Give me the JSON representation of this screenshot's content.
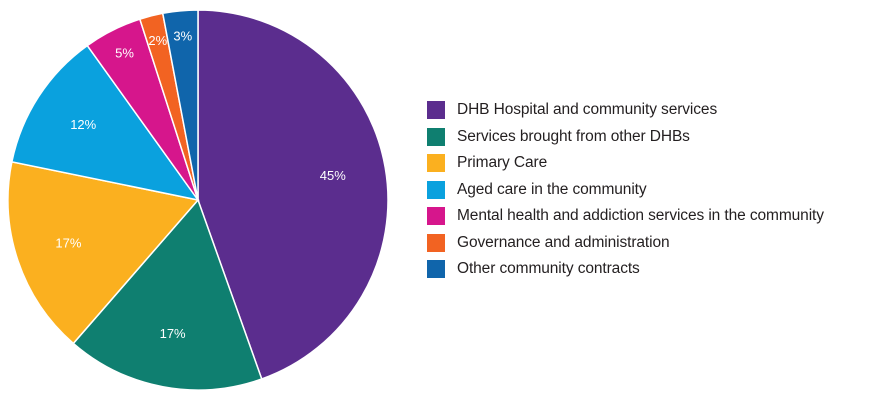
{
  "chart_data": {
    "type": "pie",
    "title": "",
    "slices": [
      {
        "label": "DHB Hospital and community services",
        "value": 45,
        "value_label": "45%",
        "color": "#5b2d8e"
      },
      {
        "label": "Services brought from other DHBs",
        "value": 17,
        "value_label": "17%",
        "color": "#0f7f70"
      },
      {
        "label": "Primary Care",
        "value": 17,
        "value_label": "17%",
        "color": "#fbb01f"
      },
      {
        "label": "Aged care in the community",
        "value": 12,
        "value_label": "12%",
        "color": "#0aa1de"
      },
      {
        "label": "Mental health and addiction services in the community",
        "value": 5,
        "value_label": "5%",
        "color": "#d6168c"
      },
      {
        "label": "Governance and administration",
        "value": 2,
        "value_label": "2%",
        "color": "#f26322"
      },
      {
        "label": "Other community contracts",
        "value": 3,
        "value_label": "3%",
        "color": "#1065ab"
      }
    ],
    "legend_position": "right"
  }
}
